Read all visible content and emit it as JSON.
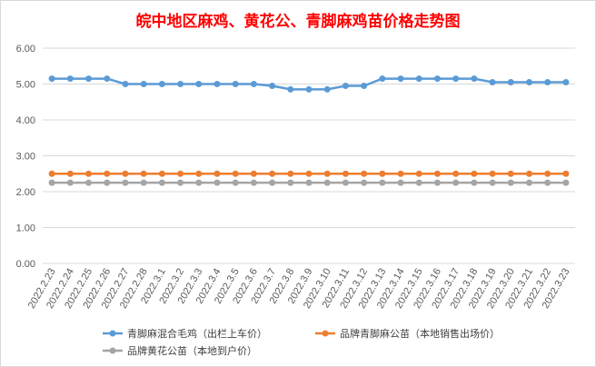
{
  "chart_data": {
    "type": "line",
    "title": "皖中地区麻鸡、黄花公、青脚麻鸡苗价格走势图",
    "xlabel": "",
    "ylabel": "",
    "ylim": [
      0,
      6
    ],
    "yticks": [
      "0.00",
      "1.00",
      "2.00",
      "3.00",
      "4.00",
      "5.00",
      "6.00"
    ],
    "grid": true,
    "legend_position": "bottom",
    "categories": [
      "2022.2.23",
      "2022.2.24",
      "2022.2.25",
      "2022.2.26",
      "2022.2.27",
      "2022.2.28",
      "2022.3.1",
      "2022.3.2",
      "2022.3.3",
      "2022.3.4",
      "2022.3.5",
      "2022.3.6",
      "2022.3.7",
      "2022.3.8",
      "2022.3.9",
      "2022.3.10",
      "2022.3.11",
      "2022.3.12",
      "2022.3.13",
      "2022.3.14",
      "2022.3.15",
      "2022.3.16",
      "2022.3.17",
      "2022.3.18",
      "2022.3.19",
      "2022.3.20",
      "2022.3.21",
      "2022.3.22",
      "2022.3.23"
    ],
    "series": [
      {
        "name": "青脚麻混合毛鸡（出栏上车价）",
        "color": "#5b9bd5",
        "values": [
          5.15,
          5.15,
          5.15,
          5.15,
          5.0,
          5.0,
          5.0,
          5.0,
          5.0,
          5.0,
          5.0,
          5.0,
          4.95,
          4.85,
          4.85,
          4.85,
          4.95,
          4.95,
          5.15,
          5.15,
          5.15,
          5.15,
          5.15,
          5.15,
          5.05,
          5.05,
          5.05,
          5.05,
          5.05
        ]
      },
      {
        "name": "品牌青脚麻公苗（本地销售出场价）",
        "color": "#ed7d31",
        "values": [
          2.5,
          2.5,
          2.5,
          2.5,
          2.5,
          2.5,
          2.5,
          2.5,
          2.5,
          2.5,
          2.5,
          2.5,
          2.5,
          2.5,
          2.5,
          2.5,
          2.5,
          2.5,
          2.5,
          2.5,
          2.5,
          2.5,
          2.5,
          2.5,
          2.5,
          2.5,
          2.5,
          2.5,
          2.5
        ]
      },
      {
        "name": "品牌黄花公苗（本地到户价）",
        "color": "#a5a5a5",
        "values": [
          2.25,
          2.25,
          2.25,
          2.25,
          2.25,
          2.25,
          2.25,
          2.25,
          2.25,
          2.25,
          2.25,
          2.25,
          2.25,
          2.25,
          2.25,
          2.25,
          2.25,
          2.25,
          2.25,
          2.25,
          2.25,
          2.25,
          2.25,
          2.25,
          2.25,
          2.25,
          2.25,
          2.25,
          2.25
        ]
      }
    ]
  }
}
